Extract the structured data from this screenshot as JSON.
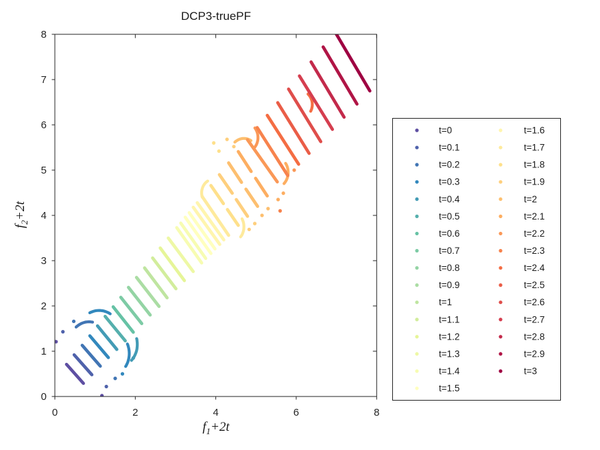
{
  "window": {
    "background": "#ffffff"
  },
  "chart_data": {
    "type": "scatter",
    "title": "DCP3-truePF",
    "xlabel": "f_1+2t",
    "ylabel": "f_2+2t",
    "xlabel_parts": {
      "base": "f",
      "sub": "1",
      "rest": "+2t"
    },
    "ylabel_parts": {
      "base": "f",
      "sub": "2",
      "rest": "+2t"
    },
    "xlim": [
      0,
      8
    ],
    "ylim": [
      0,
      8
    ],
    "xticks": [
      "0",
      "2",
      "4",
      "6",
      "8"
    ],
    "yticks": [
      "0",
      "1",
      "2",
      "3",
      "4",
      "5",
      "6",
      "7",
      "8"
    ],
    "grid": false,
    "legend_position": "outside-right",
    "axis_color": "#262626",
    "text_color": "#1a1a1a",
    "marker": "point",
    "series": [
      {
        "t": 0.0,
        "label": "t=0",
        "color": "#5e4fa2",
        "segments": [
          [
            0.29,
            0.71,
            0.71,
            0.29
          ]
        ],
        "arcs": [],
        "dots": [
          [
            0.03,
            1.21
          ],
          [
            1.17,
            0.02
          ]
        ]
      },
      {
        "t": 0.1,
        "label": "t=0.1",
        "color": "#4f62ab",
        "segments": [
          [
            0.48,
            0.92,
            0.92,
            0.48
          ]
        ],
        "arcs": [],
        "dots": [
          [
            0.2,
            1.43
          ],
          [
            1.28,
            0.22
          ]
        ]
      },
      {
        "t": 0.2,
        "label": "t=0.2",
        "color": "#4175b4",
        "segments": [
          [
            0.68,
            1.13,
            1.13,
            0.67
          ]
        ],
        "arcs": [
          [
            0.85,
            1.15,
            0.5,
            80,
            130
          ]
        ],
        "dots": [
          [
            0.47,
            1.66
          ],
          [
            1.5,
            0.4
          ]
        ]
      },
      {
        "t": 0.3,
        "label": "t=0.3",
        "color": "#3288bd",
        "segments": [
          [
            0.87,
            1.34,
            1.33,
            0.86
          ]
        ],
        "arcs": [
          [
            1.1,
            1.35,
            0.55,
            60,
            115
          ],
          [
            1.35,
            0.95,
            0.5,
            -35,
            25
          ]
        ],
        "dots": [
          [
            1.68,
            0.5
          ]
        ]
      },
      {
        "t": 0.4,
        "label": "t=0.4",
        "color": "#439bb5",
        "segments": [
          [
            1.06,
            1.56,
            1.54,
            1.04
          ]
        ],
        "arcs": [
          [
            1.55,
            1.15,
            0.5,
            -45,
            15
          ]
        ],
        "dots": [
          [
            1.95,
            0.85
          ]
        ]
      },
      {
        "t": 0.5,
        "label": "t=0.5",
        "color": "#55afad",
        "segments": [
          [
            1.25,
            1.77,
            1.75,
            1.23
          ]
        ],
        "arcs": [],
        "dots": []
      },
      {
        "t": 0.6,
        "label": "t=0.6",
        "color": "#66c2a5",
        "segments": [
          [
            1.45,
            1.98,
            1.95,
            1.42
          ]
        ],
        "arcs": [],
        "dots": []
      },
      {
        "t": 0.7,
        "label": "t=0.7",
        "color": "#7dcba5",
        "segments": [
          [
            1.64,
            2.19,
            2.16,
            1.61
          ]
        ],
        "arcs": [],
        "dots": []
      },
      {
        "t": 0.8,
        "label": "t=0.8",
        "color": "#94d4a4",
        "segments": [
          [
            1.83,
            2.41,
            2.37,
            1.8
          ]
        ],
        "arcs": [],
        "dots": []
      },
      {
        "t": 0.9,
        "label": "t=0.9",
        "color": "#abdda4",
        "segments": [
          [
            2.03,
            2.63,
            2.59,
            1.99
          ]
        ],
        "arcs": [],
        "dots": []
      },
      {
        "t": 1.0,
        "label": "t=1",
        "color": "#bfe5a0",
        "segments": [
          [
            2.23,
            2.84,
            2.79,
            2.18
          ]
        ],
        "arcs": [],
        "dots": []
      },
      {
        "t": 1.1,
        "label": "t=1.1",
        "color": "#d2ed9c",
        "segments": [
          [
            2.43,
            3.06,
            3.01,
            2.38
          ]
        ],
        "arcs": [],
        "dots": []
      },
      {
        "t": 1.2,
        "label": "t=1.2",
        "color": "#e6f598",
        "segments": [
          [
            2.62,
            3.28,
            3.22,
            2.56
          ]
        ],
        "arcs": [],
        "dots": []
      },
      {
        "t": 1.3,
        "label": "t=1.3",
        "color": "#eef8a5",
        "segments": [
          [
            2.82,
            3.5,
            3.44,
            2.76
          ]
        ],
        "arcs": [],
        "dots": []
      },
      {
        "t": 1.4,
        "label": "t=1.4",
        "color": "#f7fcb2",
        "segments": [
          [
            3.03,
            3.73,
            3.65,
            2.95
          ],
          [
            3.13,
            3.83,
            3.75,
            3.05
          ]
        ],
        "arcs": [],
        "dots": []
      },
      {
        "t": 1.5,
        "label": "t=1.5",
        "color": "#ffffbf",
        "segments": [
          [
            3.24,
            3.96,
            3.88,
            3.16
          ],
          [
            3.34,
            4.06,
            3.98,
            3.26
          ]
        ],
        "arcs": [],
        "dots": []
      },
      {
        "t": 1.6,
        "label": "t=1.6",
        "color": "#fff5ae",
        "segments": [
          [
            3.44,
            4.18,
            4.1,
            3.36
          ],
          [
            3.54,
            4.28,
            4.2,
            3.46
          ]
        ],
        "arcs": [],
        "dots": []
      },
      {
        "t": 1.7,
        "label": "t=1.7",
        "color": "#feea9c",
        "segments": [
          [
            3.66,
            4.42,
            4.32,
            3.56
          ]
        ],
        "arcs": [
          [
            3.95,
            4.5,
            0.3,
            120,
            200
          ],
          [
            4.35,
            3.75,
            0.35,
            -40,
            30
          ]
        ],
        "dots": []
      },
      {
        "t": 1.8,
        "label": "t=1.8",
        "color": "#fee08b",
        "segments": [
          [
            3.88,
            4.66,
            4.19,
            4.26
          ],
          [
            4.29,
            4.13,
            4.56,
            3.78
          ]
        ],
        "arcs": [],
        "dots": [
          [
            3.95,
            5.6
          ],
          [
            4.08,
            5.42
          ]
        ]
      },
      {
        "t": 1.9,
        "label": "t=1.9",
        "color": "#fecf7d",
        "segments": [
          [
            4.09,
            4.9,
            4.41,
            4.49
          ],
          [
            4.51,
            4.35,
            4.79,
            3.98
          ]
        ],
        "arcs": [],
        "dots": [
          [
            4.83,
            3.69
          ],
          [
            4.97,
            3.82
          ],
          [
            4.28,
            5.68
          ],
          [
            4.45,
            5.52
          ]
        ]
      },
      {
        "t": 2.0,
        "label": "t=2",
        "color": "#fdbf6f",
        "segments": [
          [
            4.32,
            5.16,
            4.64,
            4.73
          ],
          [
            4.75,
            4.58,
            5.04,
            4.2
          ]
        ],
        "arcs": [
          [
            4.7,
            5.35,
            0.35,
            60,
            130
          ]
        ],
        "dots": [
          [
            5.15,
            4.0
          ],
          [
            5.3,
            4.15
          ]
        ]
      },
      {
        "t": 2.1,
        "label": "t=2.1",
        "color": "#fdae61",
        "segments": [
          [
            4.56,
            5.41,
            4.88,
            4.97
          ],
          [
            4.99,
            4.82,
            5.28,
            4.43
          ]
        ],
        "arcs": [
          [
            5.45,
            4.95,
            0.35,
            -45,
            35
          ]
        ],
        "dots": [
          [
            5.55,
            4.35
          ],
          [
            5.68,
            4.49
          ]
        ]
      },
      {
        "t": 2.2,
        "label": "t=2.2",
        "color": "#fa9857",
        "segments": [
          [
            4.79,
            5.67,
            5.53,
            4.74
          ]
        ],
        "arcs": [
          [
            4.72,
            5.72,
            0.33,
            -40,
            40
          ]
        ],
        "dots": [
          [
            5.95,
            5.0
          ]
        ]
      },
      {
        "t": 2.3,
        "label": "t=2.3",
        "color": "#f7834d",
        "segments": [
          [
            5.03,
            5.94,
            5.79,
            4.88
          ]
        ],
        "arcs": [],
        "dots": [
          [
            5.6,
            4.1
          ]
        ]
      },
      {
        "t": 2.4,
        "label": "t=2.4",
        "color": "#f46d43",
        "segments": [
          [
            5.28,
            6.21,
            6.06,
            5.13
          ]
        ],
        "arcs": [
          [
            6.1,
            6.45,
            0.3,
            -30,
            50
          ]
        ],
        "dots": []
      },
      {
        "t": 2.5,
        "label": "t=2.5",
        "color": "#ea5d47",
        "segments": [
          [
            5.54,
            6.49,
            6.32,
            5.37
          ]
        ],
        "arcs": [],
        "dots": []
      },
      {
        "t": 2.6,
        "label": "t=2.6",
        "color": "#df4e4b",
        "segments": [
          [
            5.81,
            6.79,
            6.61,
            5.63
          ]
        ],
        "arcs": [],
        "dots": []
      },
      {
        "t": 2.7,
        "label": "t=2.7",
        "color": "#d53e4f",
        "segments": [
          [
            6.08,
            7.08,
            6.9,
            5.9
          ]
        ],
        "arcs": [],
        "dots": []
      },
      {
        "t": 2.8,
        "label": "t=2.8",
        "color": "#c32a4b",
        "segments": [
          [
            6.37,
            7.39,
            7.19,
            6.17
          ]
        ],
        "arcs": [],
        "dots": []
      },
      {
        "t": 2.9,
        "label": "t=2.9",
        "color": "#b01546",
        "segments": [
          [
            6.67,
            7.72,
            7.51,
            6.46
          ]
        ],
        "arcs": [],
        "dots": []
      },
      {
        "t": 3.0,
        "label": "t=3",
        "color": "#9e0142",
        "segments": [
          [
            7.0,
            8.0,
            7.83,
            6.75
          ]
        ],
        "arcs": [],
        "dots": []
      }
    ]
  }
}
